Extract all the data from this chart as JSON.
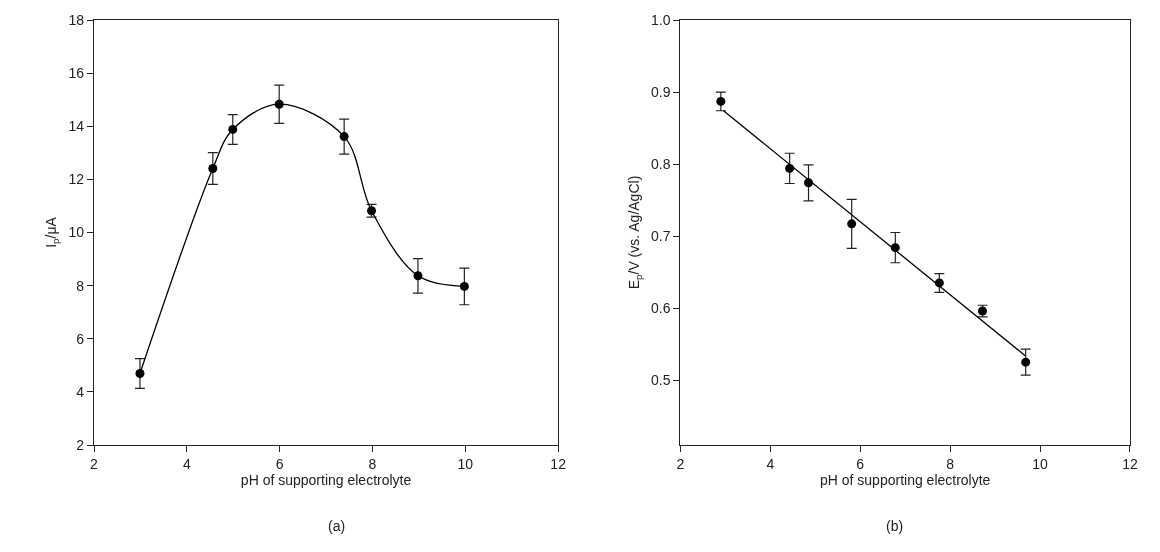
{
  "chart_data": [
    {
      "type": "line",
      "xlabel": "pH of supporting electrolyte",
      "ylabel": "I$_{p}$/μA",
      "annotations": [
        "(a)"
      ],
      "marker": "circle",
      "grid": false,
      "x": [
        2.99,
        4.56,
        4.99,
        5.99,
        7.39,
        7.98,
        8.98,
        9.98
      ],
      "series": [
        {
          "color": "#000000",
          "values": [
            4.69,
            12.41,
            13.88,
            14.83,
            13.61,
            10.82,
            8.37,
            7.97
          ],
          "errors": [
            0.56,
            0.6,
            0.56,
            0.72,
            0.66,
            0.24,
            0.65,
            0.69
          ]
        }
      ],
      "xlim": [
        2,
        12
      ],
      "xticks": [
        2,
        4,
        6,
        8,
        10,
        12
      ],
      "ylim": [
        2,
        18
      ],
      "yticks": [
        2,
        4,
        6,
        8,
        10,
        12,
        14,
        16,
        18
      ]
    },
    {
      "type": "scatter",
      "xlabel": "pH of supporting electrolyte",
      "ylabel": "E$_{p}$/V (vs. Ag/AgCl)",
      "annotations": [
        "(b)"
      ],
      "marker": "circle",
      "grid": false,
      "x": [
        2.9,
        4.43,
        4.85,
        5.81,
        6.78,
        7.76,
        8.72,
        9.68
      ],
      "series": [
        {
          "color": "#000000",
          "values": [
            0.887,
            0.794,
            0.774,
            0.717,
            0.684,
            0.635,
            0.596,
            0.525
          ],
          "errors": [
            0.013,
            0.021,
            0.025,
            0.034,
            0.021,
            0.013,
            0.008,
            0.018
          ]
        },
        {
          "type": "line",
          "marker": "none",
          "color": "#000000",
          "x": [
            2.96,
            9.67
          ],
          "values": [
            0.874,
            0.534
          ]
        }
      ],
      "xlim": [
        2,
        12
      ],
      "xticks": [
        2,
        4,
        6,
        8,
        10,
        12
      ],
      "ylim": [
        0.41,
        1.0
      ],
      "yticks": [
        {
          "value": 0.5,
          "label": "0.5"
        },
        {
          "value": 0.6,
          "label": "0.6"
        },
        {
          "value": 0.7,
          "label": "0.7"
        },
        {
          "value": 0.8,
          "label": "0.8"
        },
        {
          "value": 0.9,
          "label": "0.9"
        },
        {
          "value": 1.0,
          "label": "1.0"
        }
      ]
    }
  ]
}
